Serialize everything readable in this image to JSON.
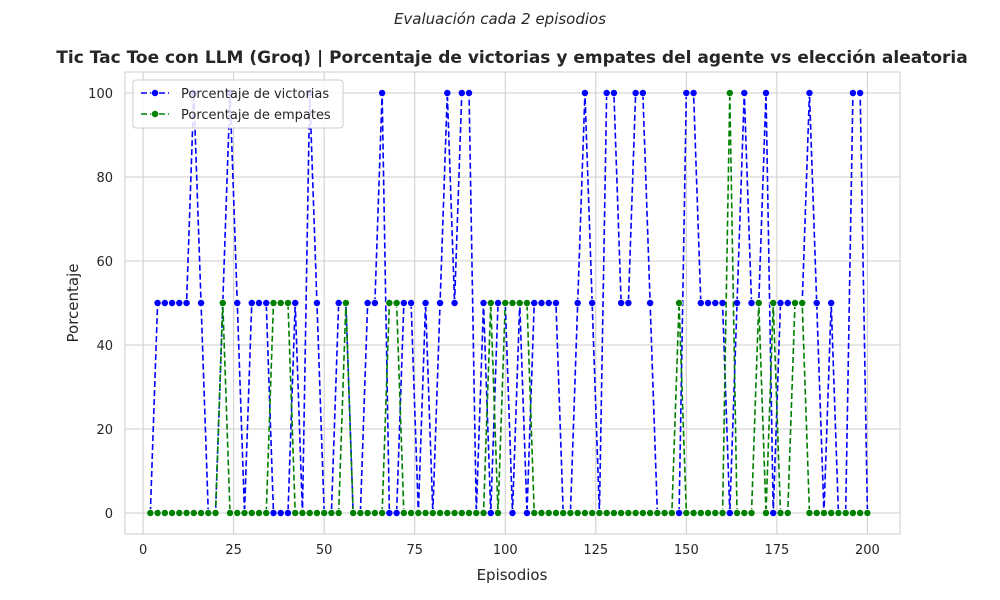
{
  "chart_data": {
    "type": "line",
    "suptitle": "Evaluación cada 2 episodios",
    "title": "Tic Tac Toe con LLM (Groq) | Porcentaje de victorias y empates del agente vs elección aleatoria",
    "xlabel": "Episodios",
    "ylabel": "Porcentaje",
    "xlim": [
      -5,
      209
    ],
    "ylim": [
      -5,
      105
    ],
    "xticks": [
      0,
      25,
      50,
      75,
      100,
      125,
      150,
      175,
      200
    ],
    "yticks": [
      0,
      20,
      40,
      60,
      80,
      100
    ],
    "grid": true,
    "legend_position": "top-left",
    "x": [
      2,
      4,
      6,
      8,
      10,
      12,
      14,
      16,
      18,
      20,
      22,
      24,
      26,
      28,
      30,
      32,
      34,
      36,
      38,
      40,
      42,
      44,
      46,
      48,
      50,
      52,
      54,
      56,
      58,
      60,
      62,
      64,
      66,
      68,
      70,
      72,
      74,
      76,
      78,
      80,
      82,
      84,
      86,
      88,
      90,
      92,
      94,
      96,
      98,
      100,
      102,
      104,
      106,
      108,
      110,
      112,
      114,
      116,
      118,
      120,
      122,
      124,
      126,
      128,
      130,
      132,
      134,
      136,
      138,
      140,
      142,
      144,
      146,
      148,
      150,
      152,
      154,
      156,
      158,
      160,
      162,
      164,
      166,
      168,
      170,
      172,
      174,
      176,
      178,
      180,
      182,
      184,
      186,
      188,
      190,
      192,
      194,
      196,
      198,
      200
    ],
    "series": [
      {
        "name": "Porcentaje de victorias",
        "color": "#0000ff",
        "values": [
          0,
          50,
          50,
          50,
          50,
          50,
          100,
          50,
          0,
          0,
          50,
          100,
          50,
          0,
          50,
          50,
          50,
          0,
          0,
          0,
          50,
          0,
          100,
          50,
          0,
          0,
          50,
          50,
          0,
          0,
          50,
          50,
          100,
          0,
          0,
          50,
          50,
          0,
          50,
          0,
          50,
          100,
          50,
          100,
          100,
          0,
          50,
          0,
          50,
          50,
          0,
          50,
          0,
          50,
          50,
          50,
          50,
          0,
          0,
          50,
          100,
          50,
          0,
          100,
          100,
          50,
          50,
          100,
          100,
          50,
          0,
          0,
          0,
          0,
          100,
          100,
          50,
          50,
          50,
          50,
          0,
          50,
          100,
          50,
          50,
          100,
          0,
          50,
          50,
          50,
          50,
          100,
          50,
          0,
          50,
          0,
          0,
          100,
          100,
          0
        ]
      },
      {
        "name": "Porcentaje de empates",
        "color": "#008000",
        "values": [
          0,
          0,
          0,
          0,
          0,
          0,
          0,
          0,
          0,
          0,
          50,
          0,
          0,
          0,
          0,
          0,
          0,
          50,
          50,
          50,
          0,
          0,
          0,
          0,
          0,
          0,
          0,
          50,
          0,
          0,
          0,
          0,
          0,
          50,
          50,
          0,
          0,
          0,
          0,
          0,
          0,
          0,
          0,
          0,
          0,
          0,
          0,
          50,
          0,
          50,
          50,
          50,
          50,
          0,
          0,
          0,
          0,
          0,
          0,
          0,
          0,
          0,
          0,
          0,
          0,
          0,
          0,
          0,
          0,
          0,
          0,
          0,
          0,
          50,
          0,
          0,
          0,
          0,
          0,
          0,
          100,
          0,
          0,
          0,
          50,
          0,
          50,
          0,
          0,
          50,
          50,
          0,
          0,
          0,
          0,
          0,
          0,
          0,
          0,
          0
        ]
      }
    ]
  }
}
